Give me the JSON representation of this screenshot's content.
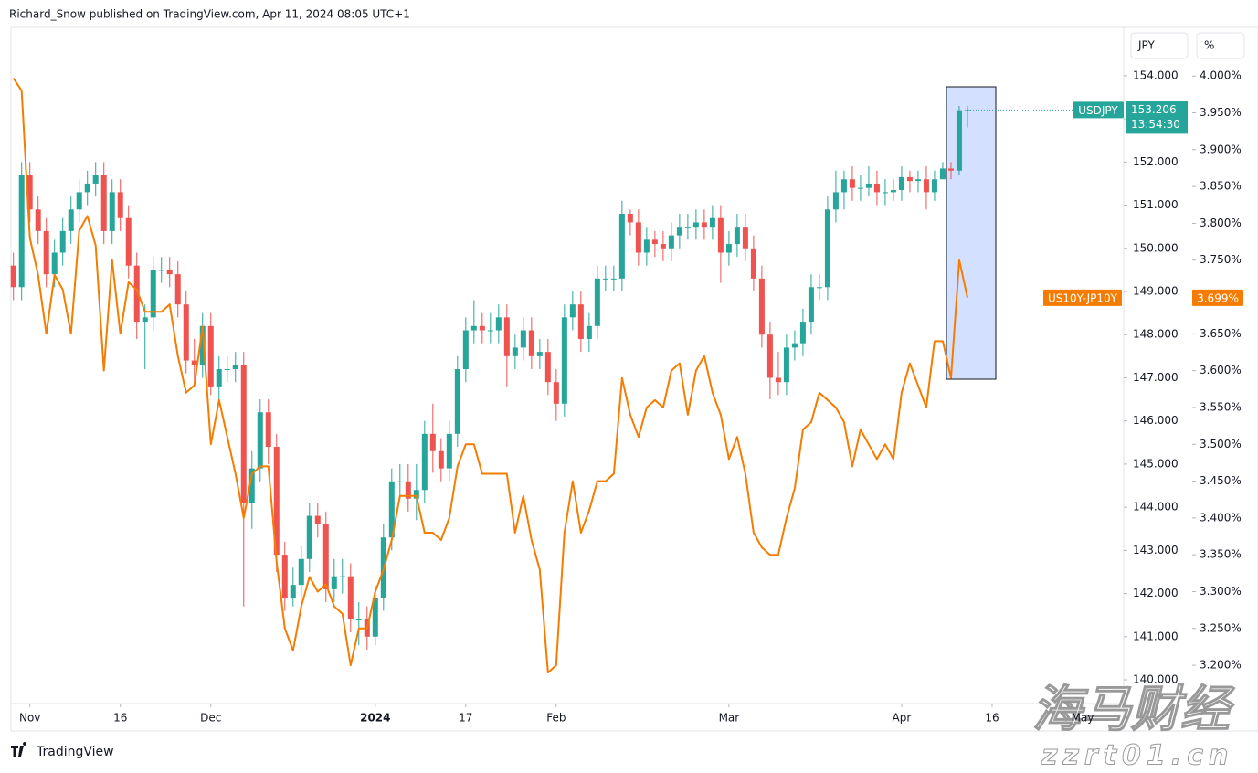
{
  "header": {
    "byline": "Richard_Snow published on TradingView.com, Apr 11, 2024 08:05 UTC+1",
    "brand": "TradingView"
  },
  "watermark": {
    "name": "海马财经",
    "site": "zzrt01.cn"
  },
  "chart_data": {
    "type": "candlestick",
    "y_axis_label": "JPY",
    "y2_axis_label": "%",
    "xlim": [
      -0.3,
      135
    ],
    "xticks": [
      {
        "value": 2,
        "label": "Nov"
      },
      {
        "value": 13,
        "label": "16"
      },
      {
        "value": 24,
        "label": "Dec"
      },
      {
        "value": 44,
        "label": "2024"
      },
      {
        "value": 55,
        "label": "17"
      },
      {
        "value": 66,
        "label": "Feb"
      },
      {
        "value": 87,
        "label": "Mar"
      },
      {
        "value": 108,
        "label": "Apr"
      },
      {
        "value": 119,
        "label": "16"
      },
      {
        "value": 130,
        "label": "May"
      }
    ],
    "ylim": [
      139.45,
      155.12
    ],
    "yticks": [
      {
        "value": 154,
        "label": "154.000"
      },
      {
        "value": 153,
        "label": "153.000"
      },
      {
        "value": 152,
        "label": "152.000"
      },
      {
        "value": 151,
        "label": "151.000"
      },
      {
        "value": 150,
        "label": "150.000"
      },
      {
        "value": 149,
        "label": "149.000"
      },
      {
        "value": 148,
        "label": "148.000"
      },
      {
        "value": 147,
        "label": "147.000"
      },
      {
        "value": 146,
        "label": "146.000"
      },
      {
        "value": 145,
        "label": "145.000"
      },
      {
        "value": 144,
        "label": "144.000"
      },
      {
        "value": 143,
        "label": "143.000"
      },
      {
        "value": 142,
        "label": "142.000"
      },
      {
        "value": 141,
        "label": "141.000"
      },
      {
        "value": 140,
        "label": "140.000"
      }
    ],
    "y2lim": [
      3.148,
      4.066
    ],
    "y2ticks": [
      {
        "value": 4,
        "label": "4.000%"
      },
      {
        "value": 3.95,
        "label": "3.950%"
      },
      {
        "value": 3.9,
        "label": "3.900%"
      },
      {
        "value": 3.85,
        "label": "3.850%"
      },
      {
        "value": 3.8,
        "label": "3.800%"
      },
      {
        "value": 3.75,
        "label": "3.750%"
      },
      {
        "value": 3.7,
        "label": "3.700%"
      },
      {
        "value": 3.65,
        "label": "3.650%"
      },
      {
        "value": 3.6,
        "label": "3.600%"
      },
      {
        "value": 3.55,
        "label": "3.550%"
      },
      {
        "value": 3.5,
        "label": "3.500%"
      },
      {
        "value": 3.45,
        "label": "3.450%"
      },
      {
        "value": 3.4,
        "label": "3.400%"
      },
      {
        "value": 3.35,
        "label": "3.350%"
      },
      {
        "value": 3.3,
        "label": "3.300%"
      },
      {
        "value": 3.25,
        "label": "3.250%"
      },
      {
        "value": 3.2,
        "label": "3.200%"
      }
    ],
    "grid": false,
    "series": [
      {
        "name": "USDJPY",
        "type": "candlestick",
        "up_color": "#26a69a",
        "down_color": "#ef5350",
        "countdown": "13:54:30",
        "open": [
          149.6,
          149.1,
          151.7,
          150.9,
          150.4,
          149.4,
          149.9,
          150.4,
          150.9,
          151.3,
          151.5,
          151.7,
          150.4,
          151.3,
          150.7,
          149.6,
          148.3,
          148.4,
          149.5,
          149.5,
          149.4,
          148.7,
          147.4,
          147.3,
          148.2,
          146.8,
          147.2,
          147.2,
          147.3,
          144.1,
          144.9,
          146.2,
          145.4,
          142.9,
          141.9,
          142.2,
          142.8,
          143.8,
          143.6,
          142.1,
          142.4,
          142.4,
          141.4,
          141.4,
          141.0,
          141.9,
          143.3,
          144.6,
          144.6,
          144.2,
          144.4,
          145.7,
          145.3,
          144.9,
          145.7,
          147.2,
          148.1,
          148.2,
          148.1,
          148.1,
          148.4,
          147.5,
          147.7,
          148.1,
          147.5,
          147.6,
          146.9,
          146.4,
          148.4,
          148.7,
          147.9,
          148.2,
          149.3,
          149.3,
          149.3,
          150.8,
          150.6,
          149.9,
          150.2,
          150.1,
          150.0,
          150.3,
          150.5,
          150.5,
          150.6,
          150.5,
          150.7,
          149.9,
          150.1,
          150.5,
          150.0,
          149.3,
          148.0,
          147.0,
          146.9,
          147.7,
          147.8,
          148.3,
          149.1,
          149.1,
          150.9,
          151.3,
          151.6,
          151.4,
          151.4,
          151.5,
          151.3,
          151.3,
          151.35,
          151.65,
          151.56,
          151.6,
          151.3,
          151.6,
          151.85,
          151.8,
          153.2
        ],
        "high": [
          149.9,
          152.0,
          152.0,
          151.2,
          150.7,
          150.2,
          150.7,
          151.2,
          151.6,
          151.8,
          152.0,
          152.0,
          151.6,
          151.6,
          151.0,
          149.9,
          148.7,
          149.8,
          149.8,
          149.8,
          149.7,
          149.0,
          147.9,
          148.5,
          148.5,
          147.5,
          147.5,
          147.6,
          147.6,
          145.3,
          146.5,
          146.5,
          145.7,
          143.2,
          142.6,
          143.1,
          144.1,
          144.1,
          143.9,
          142.8,
          142.8,
          142.7,
          141.8,
          141.7,
          142.2,
          143.6,
          144.9,
          145.0,
          145.0,
          145.0,
          146.0,
          146.4,
          145.6,
          146.0,
          147.5,
          148.4,
          148.8,
          148.5,
          148.5,
          148.7,
          148.7,
          148.0,
          148.4,
          148.4,
          147.9,
          147.9,
          147.2,
          148.7,
          149.0,
          149.0,
          148.5,
          149.6,
          149.6,
          149.6,
          151.1,
          150.9,
          150.9,
          150.5,
          150.4,
          150.4,
          150.6,
          150.8,
          150.8,
          150.9,
          150.9,
          151.0,
          151.0,
          150.4,
          150.8,
          150.8,
          150.3,
          149.6,
          148.3,
          147.6,
          148.0,
          148.1,
          148.6,
          149.4,
          149.4,
          151.2,
          151.8,
          151.8,
          151.9,
          151.7,
          151.9,
          151.8,
          151.6,
          151.6,
          151.9,
          151.8,
          151.8,
          151.9,
          151.8,
          152.0,
          152.0,
          153.3,
          153.3
        ],
        "low": [
          148.8,
          148.8,
          150.6,
          150.1,
          149.1,
          149.1,
          149.6,
          150.1,
          150.6,
          151.0,
          151.2,
          150.1,
          150.1,
          150.4,
          149.3,
          147.9,
          147.2,
          148.1,
          149.2,
          149.1,
          148.4,
          147.1,
          146.9,
          147.0,
          146.6,
          146.5,
          146.9,
          146.9,
          141.7,
          143.5,
          144.6,
          145.0,
          142.5,
          141.6,
          141.7,
          141.9,
          142.5,
          143.3,
          141.8,
          141.8,
          142.0,
          141.1,
          140.8,
          140.7,
          140.8,
          141.6,
          143.0,
          144.2,
          143.9,
          143.7,
          144.1,
          144.8,
          144.6,
          144.6,
          145.4,
          146.9,
          147.8,
          147.8,
          147.8,
          147.8,
          146.8,
          147.2,
          147.4,
          147.2,
          147.2,
          146.6,
          146.0,
          146.1,
          148.1,
          147.6,
          147.6,
          147.9,
          149.0,
          149.0,
          149.0,
          150.3,
          149.6,
          149.6,
          149.8,
          149.7,
          149.7,
          150.0,
          150.2,
          150.2,
          150.2,
          150.2,
          149.2,
          149.6,
          149.8,
          149.7,
          149.0,
          147.7,
          146.5,
          146.6,
          146.6,
          147.4,
          147.5,
          148.0,
          148.8,
          148.8,
          150.6,
          150.9,
          151.1,
          151.1,
          151.2,
          151.0,
          151.0,
          151.1,
          151.1,
          151.3,
          151.3,
          150.9,
          151.1,
          151.6,
          151.6,
          151.7,
          152.8
        ],
        "close": [
          149.1,
          151.7,
          150.9,
          150.4,
          149.4,
          149.9,
          150.4,
          150.9,
          151.3,
          151.5,
          151.7,
          150.4,
          151.3,
          150.7,
          149.6,
          148.3,
          148.4,
          149.5,
          149.5,
          149.4,
          148.7,
          147.4,
          147.3,
          148.2,
          146.8,
          147.2,
          147.2,
          147.3,
          144.1,
          144.9,
          146.2,
          145.4,
          142.9,
          141.9,
          142.2,
          142.8,
          143.8,
          143.6,
          142.1,
          142.4,
          142.4,
          141.4,
          141.4,
          141.0,
          141.9,
          143.3,
          144.6,
          144.6,
          144.2,
          144.4,
          145.7,
          145.3,
          144.9,
          145.7,
          147.2,
          148.1,
          148.2,
          148.1,
          148.1,
          148.4,
          147.5,
          147.7,
          148.1,
          147.5,
          147.6,
          146.9,
          146.4,
          148.4,
          148.7,
          147.9,
          148.2,
          149.3,
          149.3,
          149.3,
          150.8,
          150.6,
          149.9,
          150.2,
          150.1,
          150.0,
          150.3,
          150.5,
          150.5,
          150.6,
          150.5,
          150.7,
          149.9,
          150.1,
          150.5,
          150.0,
          149.3,
          148.0,
          147.0,
          146.9,
          147.7,
          147.8,
          148.3,
          149.1,
          149.1,
          150.9,
          151.3,
          151.6,
          151.4,
          151.4,
          151.5,
          151.3,
          151.3,
          151.35,
          151.65,
          151.56,
          151.6,
          151.3,
          151.6,
          151.85,
          151.8,
          153.2,
          153.206
        ]
      },
      {
        "name": "US10Y-JP10Y",
        "type": "line",
        "axis": "y2",
        "color": "#f57c00",
        "last_label": "3.699%",
        "values": [
          3.997,
          3.98,
          3.78,
          3.73,
          3.65,
          3.73,
          3.71,
          3.65,
          3.79,
          3.81,
          3.77,
          3.6,
          3.75,
          3.65,
          3.72,
          3.71,
          3.68,
          3.68,
          3.68,
          3.69,
          3.62,
          3.57,
          3.58,
          3.66,
          3.5,
          3.56,
          3.51,
          3.46,
          3.4,
          3.46,
          3.47,
          3.47,
          3.34,
          3.25,
          3.22,
          3.28,
          3.32,
          3.3,
          3.31,
          3.28,
          3.27,
          3.2,
          3.25,
          3.25,
          3.3,
          3.33,
          3.37,
          3.43,
          3.43,
          3.43,
          3.38,
          3.38,
          3.37,
          3.4,
          3.47,
          3.5,
          3.5,
          3.46,
          3.46,
          3.46,
          3.46,
          3.38,
          3.43,
          3.37,
          3.33,
          3.19,
          3.2,
          3.38,
          3.45,
          3.38,
          3.41,
          3.45,
          3.45,
          3.46,
          3.59,
          3.54,
          3.51,
          3.55,
          3.56,
          3.55,
          3.6,
          3.61,
          3.54,
          3.6,
          3.62,
          3.57,
          3.54,
          3.48,
          3.51,
          3.46,
          3.38,
          3.36,
          3.35,
          3.35,
          3.4,
          3.44,
          3.52,
          3.53,
          3.57,
          3.56,
          3.55,
          3.53,
          3.47,
          3.52,
          3.5,
          3.48,
          3.5,
          3.48,
          3.57,
          3.61,
          3.58,
          3.55,
          3.64,
          3.64,
          3.59,
          3.75,
          3.699
        ]
      }
    ]
  }
}
